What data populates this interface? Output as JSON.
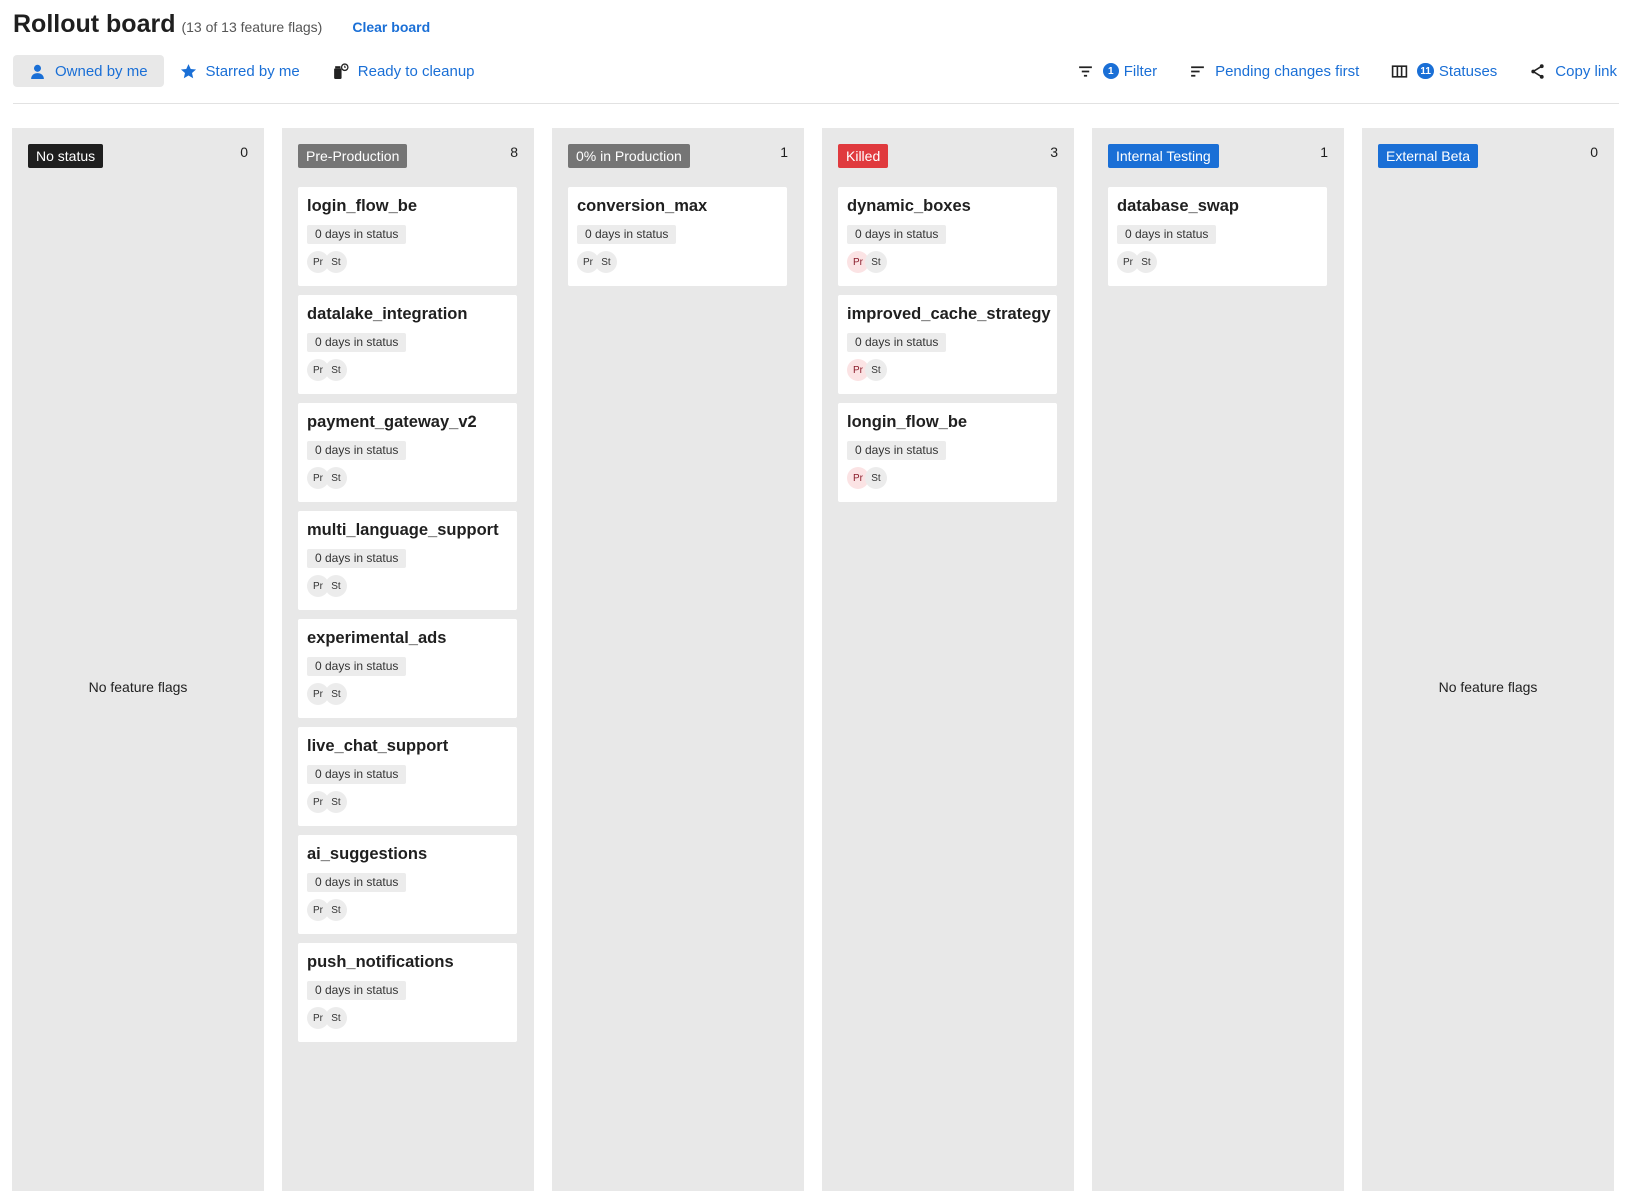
{
  "header": {
    "title": "Rollout board",
    "subtitle": "(13 of 13 feature flags)",
    "clear_label": "Clear board"
  },
  "toolbar": {
    "owned": "Owned by me",
    "starred": "Starred by me",
    "cleanup": "Ready to cleanup",
    "filter_count": "1",
    "filter": "Filter",
    "sort": "Pending changes first",
    "statuses_count": "11",
    "statuses": "Statuses",
    "copy": "Copy link"
  },
  "empty_label": "No feature flags",
  "columns": [
    {
      "status": "No status",
      "color": "#1f1f1f",
      "count": "0",
      "cards": []
    },
    {
      "status": "Pre-Production",
      "color": "#757575",
      "count": "8",
      "cards": [
        "login_flow_be",
        "datalake_integration",
        "payment_gateway_v2",
        "multi_language_support",
        "experimental_ads",
        "live_chat_support",
        "ai_suggestions",
        "push_notifications"
      ]
    },
    {
      "status": "0% in Production",
      "color": "#757575",
      "count": "1",
      "cards": [
        "conversion_max"
      ]
    },
    {
      "status": "Killed",
      "color": "#e03a3e",
      "count": "3",
      "cards": [
        "dynamic_boxes",
        "improved_cache_strategy",
        "longin_flow_be"
      ],
      "pink_avatar": true
    },
    {
      "status": "Internal Testing",
      "color": "#1a6fd6",
      "count": "1",
      "cards": [
        "database_swap"
      ]
    },
    {
      "status": "External Beta",
      "color": "#1a6fd6",
      "count": "0",
      "cards": []
    }
  ],
  "card": {
    "days": "0 days in status",
    "avatars": [
      "Pr",
      "St"
    ]
  }
}
